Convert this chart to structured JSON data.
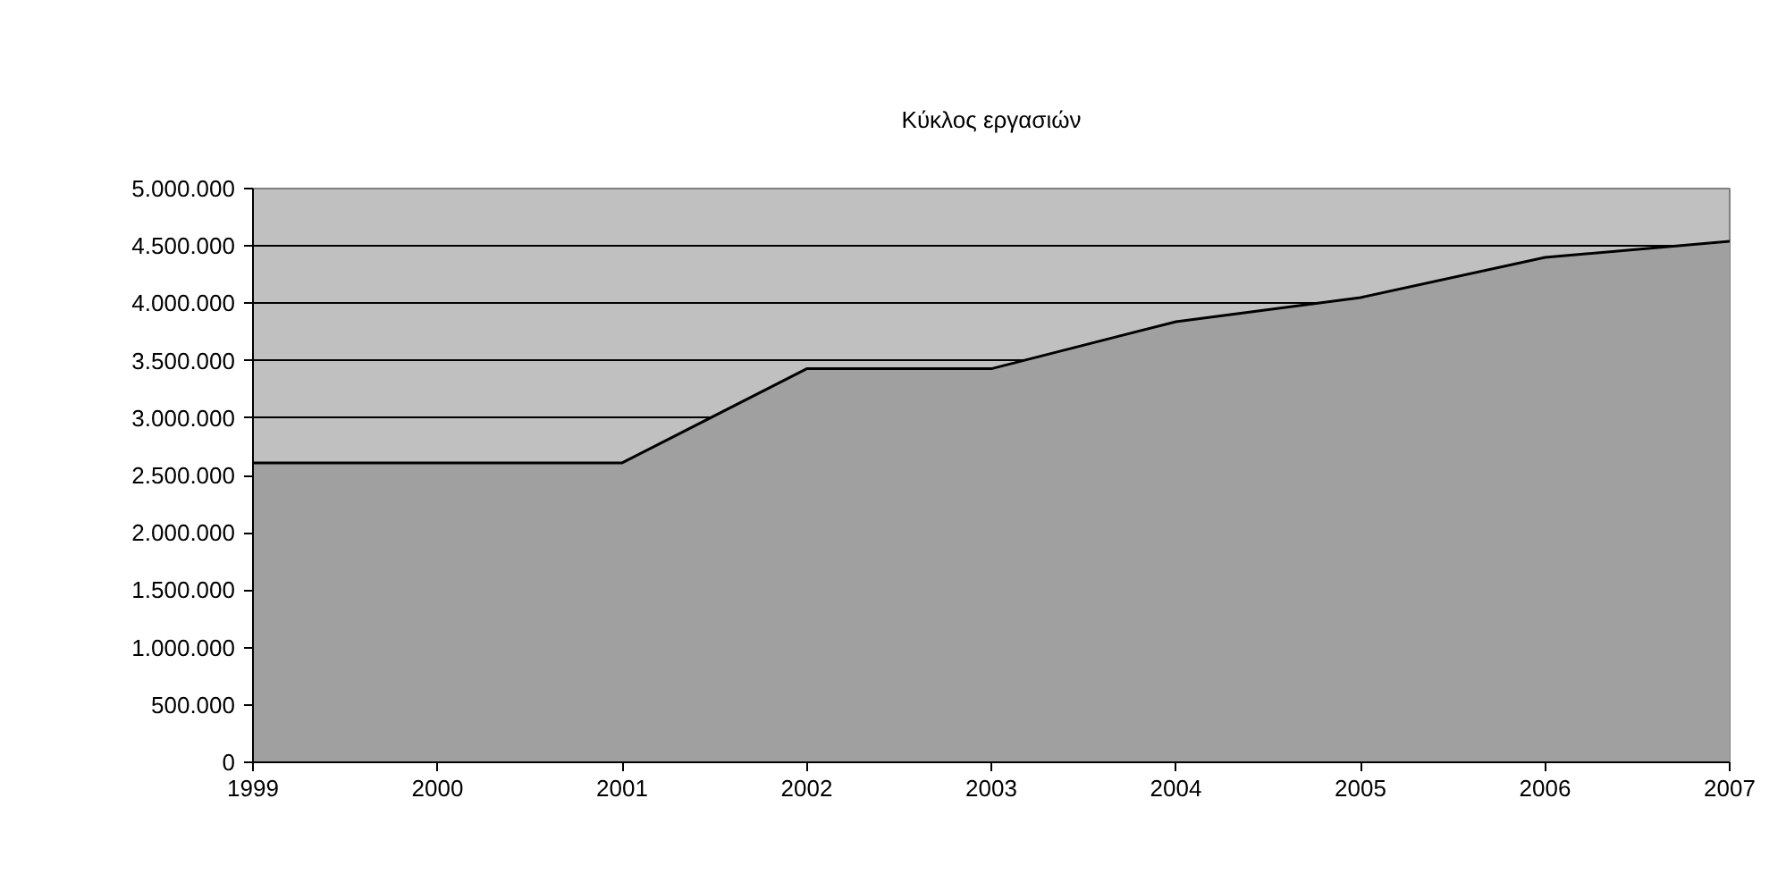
{
  "chart_data": {
    "type": "area",
    "title": "Κύκλος εργασιών",
    "x": [
      1999,
      2000,
      2001,
      2002,
      2003,
      2004,
      2005,
      2006,
      2007
    ],
    "series": [
      {
        "color": "#a0a0a0",
        "values": [
          2610000,
          2610000,
          2610000,
          3430000,
          3430000,
          3840000,
          4050000,
          4400000,
          4540000
        ]
      }
    ],
    "xlim": [
      1999,
      2007
    ],
    "xticks": [
      1999,
      2000,
      2001,
      2002,
      2003,
      2004,
      2005,
      2006,
      2007
    ],
    "ylim": [
      0,
      5000000
    ],
    "yticks": [
      0,
      {
        "value": 500000,
        "label": "500.000"
      },
      {
        "value": 1000000,
        "label": "1.000.000"
      },
      {
        "value": 1500000,
        "label": "1.500.000"
      },
      {
        "value": 2000000,
        "label": "2.000.000"
      },
      {
        "value": 2500000,
        "label": "2.500.000"
      },
      {
        "value": 3000000,
        "label": "3.000.000"
      },
      {
        "value": 3500000,
        "label": "3.500.000"
      },
      {
        "value": 4000000,
        "label": "4.000.000"
      },
      {
        "value": 4500000,
        "label": "4.500.000"
      },
      {
        "value": 5000000,
        "label": "5.000.000"
      }
    ],
    "grid": "y"
  }
}
